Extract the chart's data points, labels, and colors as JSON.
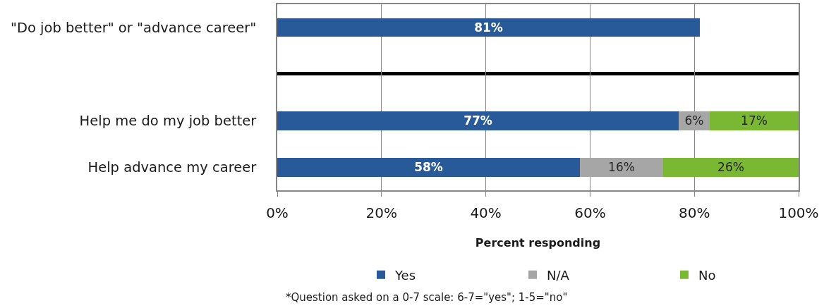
{
  "chart_data": [
    {
      "type": "bar",
      "orientation": "horizontal",
      "categories": [
        "\"Do job better\" or \"advance career\""
      ],
      "series": [
        {
          "name": "Yes",
          "color": "#285a9a",
          "values": [
            81
          ],
          "value_labels": [
            "81%"
          ]
        }
      ],
      "xlim": [
        0,
        100
      ],
      "xticks": [
        {
          "value": 0,
          "label": null
        },
        {
          "value": 20,
          "label": null
        },
        {
          "value": 40,
          "label": null
        },
        {
          "value": 60,
          "label": null
        },
        {
          "value": 80,
          "label": null
        },
        {
          "value": 100,
          "label": null
        }
      ],
      "tick_labels": "y",
      "grid": "x"
    },
    {
      "type": "bar",
      "orientation": "horizontal",
      "stacked": true,
      "categories": [
        "Help me do my job better",
        "Help advance my career"
      ],
      "series": [
        {
          "name": "Yes",
          "color": "#285a9a",
          "values": [
            77,
            58
          ],
          "value_labels": [
            "77%",
            "58%"
          ]
        },
        {
          "name": "N/A",
          "color": "#a6a6a6",
          "values": [
            6,
            16
          ],
          "value_labels": [
            "6%",
            "16%"
          ]
        },
        {
          "name": "No",
          "color": "#7ab733",
          "values": [
            17,
            26
          ],
          "value_labels": [
            "17%",
            "26%"
          ]
        }
      ],
      "xlabel": "Percent responding",
      "xlim": [
        0,
        100
      ],
      "xticks": [
        {
          "value": 0,
          "label": "0%"
        },
        {
          "value": 20,
          "label": "20%"
        },
        {
          "value": 40,
          "label": "40%"
        },
        {
          "value": 60,
          "label": "60%"
        },
        {
          "value": 80,
          "label": "80%"
        },
        {
          "value": 100,
          "label": "100%"
        }
      ],
      "grid": "x",
      "legend": "bottom",
      "annotations": [
        "*Question asked on a 0-7 scale: 6-7=\"yes\"; 1-5=\"no\""
      ]
    }
  ]
}
